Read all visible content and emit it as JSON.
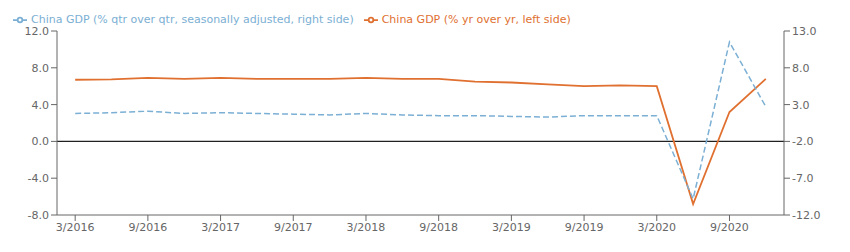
{
  "chart_data": {
    "type": "line",
    "x": [
      0,
      1,
      2,
      3,
      4,
      5,
      6,
      7,
      8,
      9,
      10,
      11,
      12,
      13,
      14,
      15,
      16,
      17,
      18,
      19
    ],
    "xlim": [
      -0.5,
      19.5
    ],
    "xticks": [
      {
        "value": 0,
        "label": "3/2016"
      },
      {
        "value": 2,
        "label": "9/2016"
      },
      {
        "value": 4,
        "label": "3/2017"
      },
      {
        "value": 6,
        "label": "9/2017"
      },
      {
        "value": 8,
        "label": "3/2018"
      },
      {
        "value": 10,
        "label": "9/2018"
      },
      {
        "value": 12,
        "label": "3/2019"
      },
      {
        "value": 14,
        "label": "9/2019"
      },
      {
        "value": 16,
        "label": "3/2020"
      },
      {
        "value": 18,
        "label": "9/2020"
      }
    ],
    "ylim": [
      -8.0,
      12.0
    ],
    "yticks": [
      {
        "value": -8,
        "label": "-8.0"
      },
      {
        "value": -4,
        "label": "-4.0"
      },
      {
        "value": 0,
        "label": "0.0"
      },
      {
        "value": 4,
        "label": "4.0"
      },
      {
        "value": 8,
        "label": "8.0"
      },
      {
        "value": 12,
        "label": "12.0"
      }
    ],
    "y2lim": [
      -12.0,
      13.0
    ],
    "y2ticks": [
      {
        "value": -12,
        "label": "-12.0"
      },
      {
        "value": -7,
        "label": "-7.0"
      },
      {
        "value": -2,
        "label": "-2.0"
      },
      {
        "value": 3,
        "label": "3.0"
      },
      {
        "value": 8,
        "label": "8.0"
      },
      {
        "value": 13,
        "label": "13.0"
      }
    ],
    "series": [
      {
        "name": "China GDP (% yr over yr, left side)",
        "color": "#E07030",
        "line_style": "solid",
        "values": [
          6.7,
          6.75,
          6.9,
          6.8,
          6.9,
          6.8,
          6.8,
          6.8,
          6.9,
          6.8,
          6.8,
          6.5,
          6.4,
          6.2,
          6.0,
          6.1,
          6.0,
          -6.8,
          3.2,
          6.8
        ]
      },
      {
        "name": "China GDP (% qtr over qtr, seasonally adjusted, right side)",
        "color": "#7BAFD4",
        "line_style": "dashed",
        "axis": "y2",
        "values": [
          1.8,
          1.9,
          2.1,
          1.8,
          1.9,
          1.8,
          1.7,
          1.6,
          1.8,
          1.6,
          1.5,
          1.5,
          1.4,
          1.3,
          1.5,
          1.5,
          1.5,
          -9.8,
          11.5,
          2.7
        ]
      }
    ],
    "hlines": [
      {
        "y": 0,
        "color": "#202020"
      }
    ],
    "grid": false,
    "legend": "upper left"
  }
}
